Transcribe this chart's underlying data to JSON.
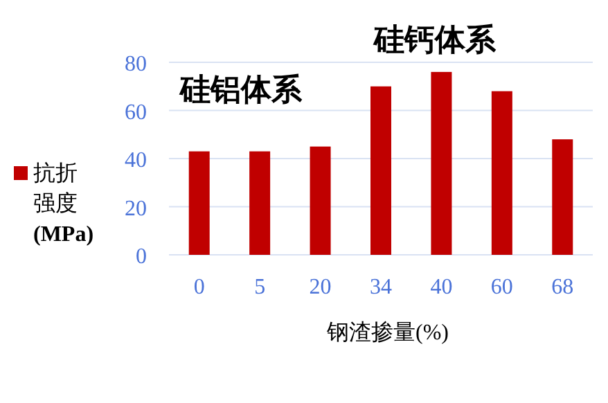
{
  "chart_data": {
    "type": "bar",
    "xlabel": "钢渣掺量(%)",
    "categories": [
      "0",
      "5",
      "20",
      "34",
      "40",
      "60",
      "68"
    ],
    "series": [
      {
        "name": "抗折强度(MPa)",
        "color": "#c00000",
        "values": [
          43,
          43,
          45,
          70,
          76,
          68,
          48
        ]
      }
    ],
    "ylim": [
      0,
      80
    ],
    "yticks": [
      0,
      20,
      40,
      60,
      80
    ],
    "grid": "y",
    "legend": "left",
    "annotations": [
      "硅铝体系",
      "硅钙体系"
    ]
  }
}
